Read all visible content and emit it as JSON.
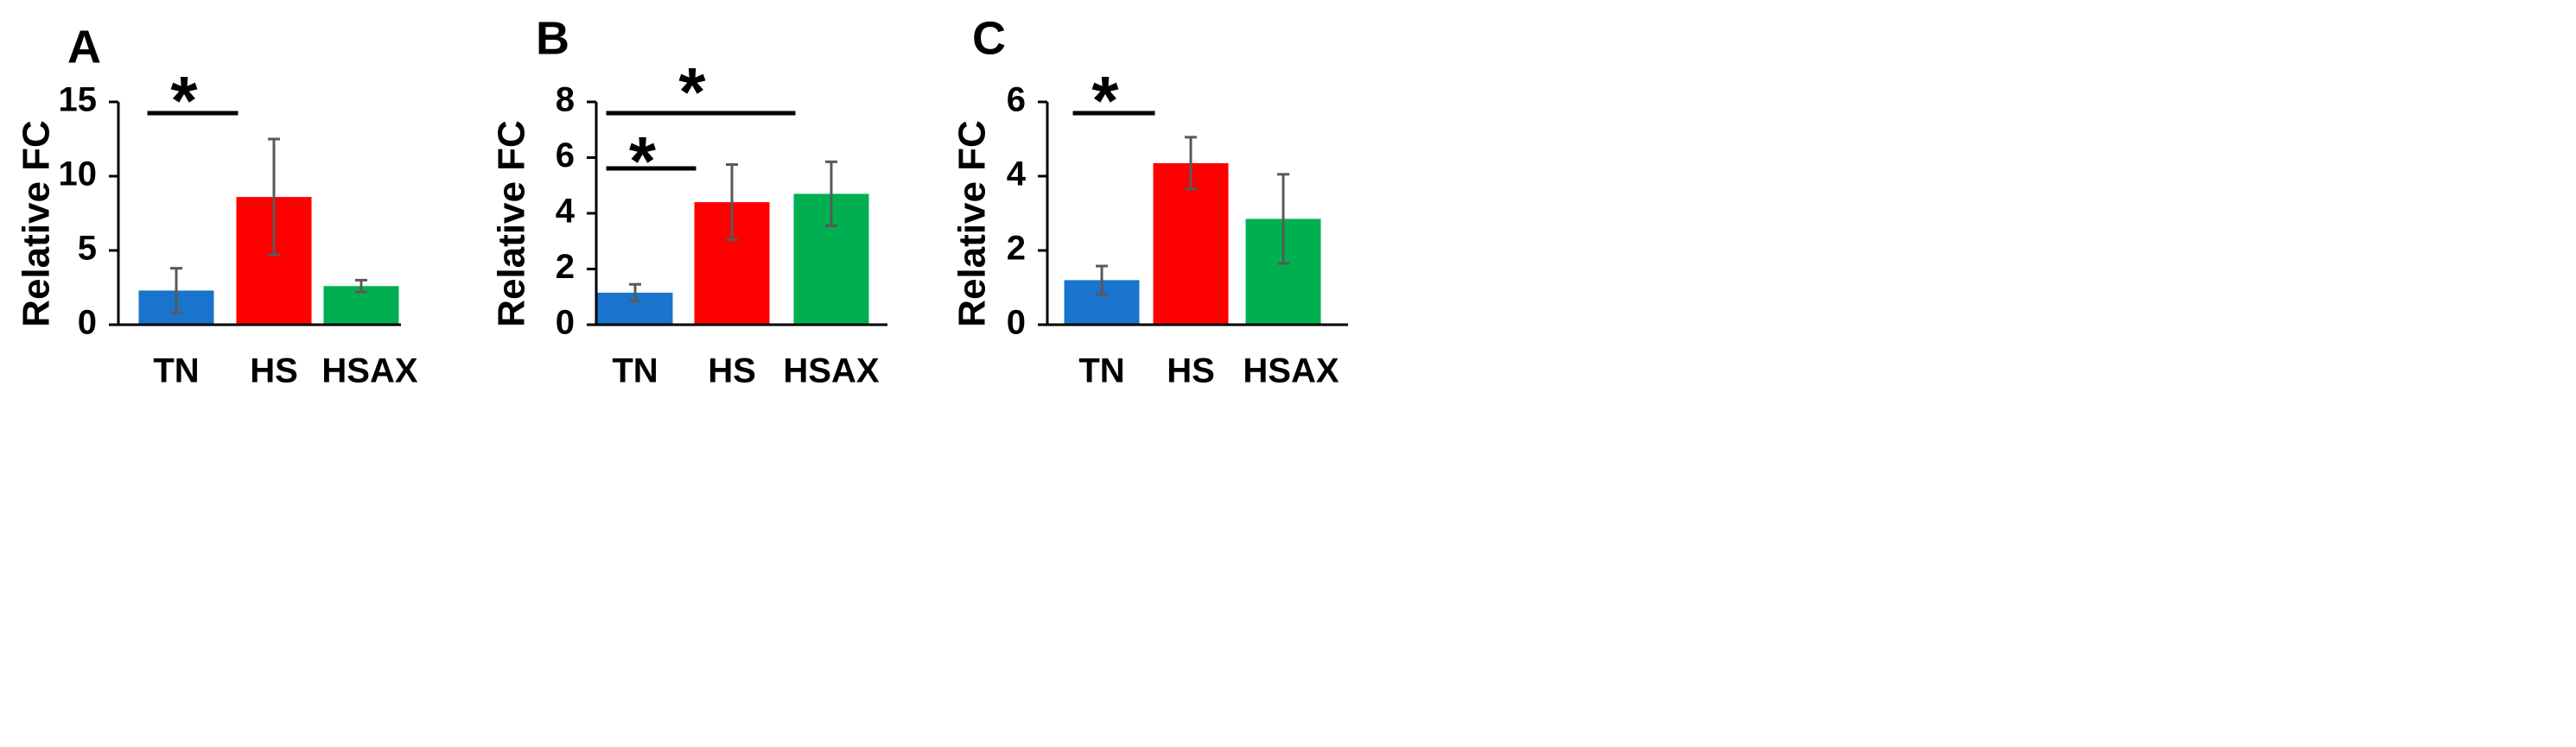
{
  "colors": {
    "TN": "#1874cd",
    "HS": "#ff0000",
    "HSAX": "#00b050",
    "error_bar": "#595959",
    "axis": "#000000"
  },
  "chart_data": [
    {
      "panel": "A",
      "type": "bar",
      "categories": [
        "TN",
        "HS",
        "HSAX"
      ],
      "values": [
        2.3,
        8.6,
        2.6
      ],
      "error": [
        1.5,
        3.9,
        0.4
      ],
      "ylabel": "Relative FC",
      "ylim": [
        0,
        15
      ],
      "yticks": [
        "0",
        "5",
        "10",
        "15"
      ],
      "significance": [
        {
          "from": "TN",
          "to": "HS",
          "label": "*"
        }
      ]
    },
    {
      "panel": "B",
      "type": "bar",
      "categories": [
        "TN",
        "HS",
        "HSAX"
      ],
      "values": [
        1.15,
        4.4,
        4.7
      ],
      "error": [
        0.3,
        1.35,
        1.15
      ],
      "ylabel": "Relative FC",
      "ylim": [
        0,
        8
      ],
      "yticks": [
        "0",
        "2",
        "4",
        "6",
        "8"
      ],
      "significance": [
        {
          "from": "TN",
          "to": "HS",
          "label": "*"
        },
        {
          "from": "TN",
          "to": "HSAX",
          "label": "*"
        }
      ]
    },
    {
      "panel": "C",
      "type": "bar",
      "categories": [
        "TN",
        "HS",
        "HSAX"
      ],
      "values": [
        1.2,
        4.35,
        2.85
      ],
      "error": [
        0.38,
        0.7,
        1.2
      ],
      "ylabel": "Relative FC",
      "ylim": [
        0,
        6
      ],
      "yticks": [
        "0",
        "2",
        "4",
        "6"
      ],
      "significance": [
        {
          "from": "TN",
          "to": "HS",
          "label": "*"
        }
      ]
    }
  ]
}
